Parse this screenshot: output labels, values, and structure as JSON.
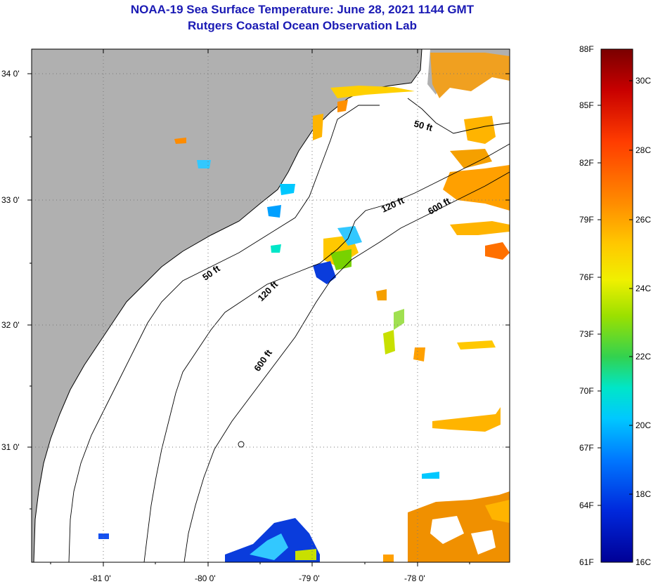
{
  "header": {
    "title": "NOAA-19 Sea Surface Temperature:  June 28, 2021 1144 GMT",
    "subtitle": "Rutgers Coastal Ocean Observation Lab"
  },
  "map": {
    "lat_ticks": [
      "34 0'",
      "33 0'",
      "32 0'",
      "31 0'"
    ],
    "lon_ticks": [
      "-81 0'",
      "-80 0'",
      "-79 0'",
      "-78 0'"
    ],
    "contours": [
      "50 ft",
      "120 ft",
      "600 ft",
      "50 ft",
      "120 ft",
      "600 ft"
    ],
    "land_color": "#b0b0b0",
    "ocean_color": "#ffffff"
  },
  "colorbar": {
    "fahrenheit": [
      "88F",
      "85F",
      "82F",
      "79F",
      "76F",
      "73F",
      "70F",
      "67F",
      "64F",
      "61F"
    ],
    "celsius": [
      "30C",
      "28C",
      "26C",
      "24C",
      "22C",
      "20C",
      "18C",
      "16C"
    ],
    "colors": [
      "#7a0000",
      "#c80000",
      "#ff3c00",
      "#ff8c00",
      "#ffc800",
      "#f0f000",
      "#9be000",
      "#32d250",
      "#00e6c8",
      "#00c8ff",
      "#0078ff",
      "#0028dc",
      "#000096"
    ]
  }
}
